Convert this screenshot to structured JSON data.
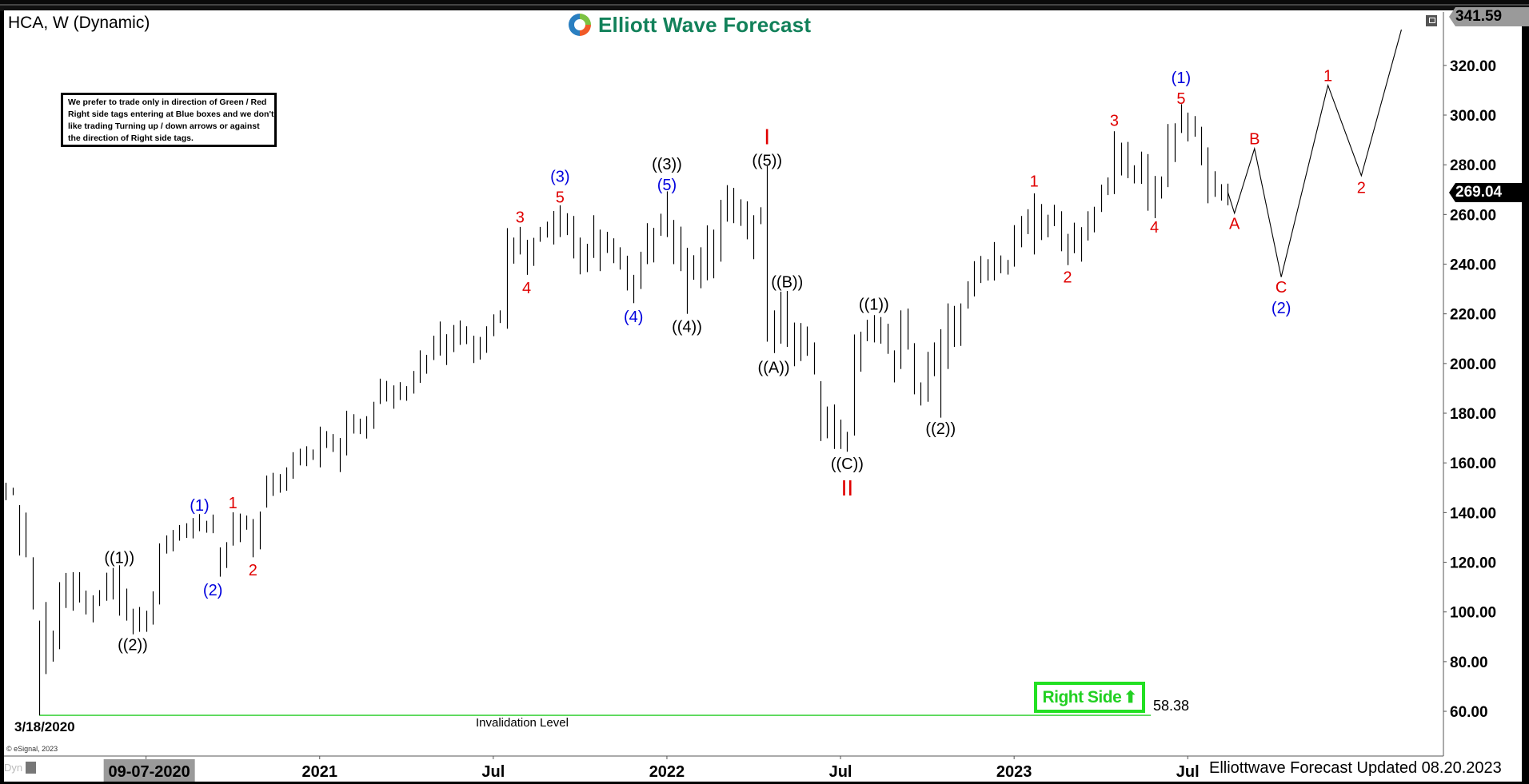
{
  "header": {
    "title": "HCA, W (Dynamic)",
    "logo_text": "Elliott Wave Forecast",
    "logo_icon": "circular-arrows-logo",
    "restore_icon": "window-restore-icon"
  },
  "disclaimer": {
    "lines": [
      "We prefer to trade only in direction of Green / Red",
      "Right side tags entering at Blue boxes and we don't",
      "like trading Turning up / down arrows or against",
      "the direction of Right side tags."
    ]
  },
  "price_tags": {
    "high": "341.59",
    "last": "269.04"
  },
  "low_date_label": "3/18/2020",
  "invalidation": {
    "level": 58.38,
    "value_text": "58.38",
    "label": "Invalidation Level",
    "start": "2020-03-16",
    "end": "2023-05-22",
    "color": "#22cc22"
  },
  "right_side": {
    "label": "Right Side",
    "arrow": "⬆",
    "arrow_icon": "up-arrow-icon",
    "color": "#22e022"
  },
  "footer": {
    "updated": "Elliottwave Forecast Updated 08.20.2023",
    "copyright": "© eSignal, 2023",
    "dyn": "Dyn",
    "lock_icon": "lock-icon"
  },
  "colors": {
    "bars": "#000000",
    "red_labels": "#e00000",
    "blue_labels": "#0000dd",
    "black_labels": "#000000",
    "logo": "#12815a"
  },
  "chart_data": {
    "type": "bar",
    "style": "weekly high-low bars",
    "symbol": "HCA",
    "ylim": [
      42,
      341.5
    ],
    "y_ticks": [
      "60.00",
      "80.00",
      "100.00",
      "120.00",
      "140.00",
      "160.00",
      "180.00",
      "200.00",
      "220.00",
      "240.00",
      "260.00",
      "280.00",
      "300.00",
      "320.00"
    ],
    "x_ticks": [
      {
        "date": "2020-07-06",
        "label": "09-07-2020",
        "highlight": true
      },
      {
        "date": "2021-01-04",
        "label": "2021"
      },
      {
        "date": "2021-07-05",
        "label": "Jul"
      },
      {
        "date": "2022-01-03",
        "label": "2022"
      },
      {
        "date": "2022-07-04",
        "label": "Jul"
      },
      {
        "date": "2023-01-02",
        "label": "2023"
      },
      {
        "date": "2023-07-03",
        "label": "Jul"
      }
    ],
    "bars_columns": [
      "week",
      "high",
      "low"
    ],
    "bars": [
      [
        "2020-02-10",
        152,
        145
      ],
      [
        "2020-02-17",
        150,
        147
      ],
      [
        "2020-02-24",
        143,
        122.7
      ],
      [
        "2020-03-02",
        140,
        122
      ],
      [
        "2020-03-09",
        122,
        101
      ],
      [
        "2020-03-16",
        96.5,
        58.4
      ],
      [
        "2020-03-23",
        104,
        75
      ],
      [
        "2020-03-30",
        92.5,
        80
      ],
      [
        "2020-04-06",
        112,
        85
      ],
      [
        "2020-04-13",
        115.7,
        101.6
      ],
      [
        "2020-04-20",
        116,
        100.5
      ],
      [
        "2020-04-27",
        116,
        103.8
      ],
      [
        "2020-05-04",
        108.6,
        99
      ],
      [
        "2020-05-11",
        106.7,
        95.8
      ],
      [
        "2020-05-18",
        108.8,
        102.4
      ],
      [
        "2020-05-25",
        115.8,
        104.5
      ],
      [
        "2020-06-01",
        117.7,
        105
      ],
      [
        "2020-06-08",
        118.8,
        98.5
      ],
      [
        "2020-06-15",
        109.4,
        96.5
      ],
      [
        "2020-06-22",
        101.3,
        91
      ],
      [
        "2020-06-29",
        102,
        92
      ],
      [
        "2020-07-06",
        100.5,
        92
      ],
      [
        "2020-07-13",
        108.3,
        94.9
      ],
      [
        "2020-07-20",
        127.6,
        103
      ],
      [
        "2020-07-27",
        130.8,
        123.5
      ],
      [
        "2020-08-03",
        133,
        124.4
      ],
      [
        "2020-08-10",
        135,
        128.7
      ],
      [
        "2020-08-17",
        135.7,
        129.8
      ],
      [
        "2020-08-24",
        137.8,
        129.6
      ],
      [
        "2020-08-31",
        139.4,
        132.5
      ],
      [
        "2020-09-07",
        136.7,
        131.9
      ],
      [
        "2020-09-14",
        139.2,
        131.7
      ],
      [
        "2020-09-21",
        126,
        114.2
      ],
      [
        "2020-09-28",
        128.1,
        117.7
      ],
      [
        "2020-10-05",
        140.1,
        126.7
      ],
      [
        "2020-10-12",
        139.6,
        128.1
      ],
      [
        "2020-10-19",
        138.8,
        133.1
      ],
      [
        "2020-10-26",
        137.4,
        122
      ],
      [
        "2020-11-02",
        140.4,
        125.2
      ],
      [
        "2020-11-09",
        154.9,
        142
      ],
      [
        "2020-11-16",
        156,
        146.7
      ],
      [
        "2020-11-23",
        155.5,
        148
      ],
      [
        "2020-11-30",
        158.2,
        148.8
      ],
      [
        "2020-12-07",
        164.3,
        153.6
      ],
      [
        "2020-12-14",
        165.7,
        159
      ],
      [
        "2020-12-21",
        166.7,
        158.7
      ],
      [
        "2020-12-28",
        165.4,
        161.2
      ],
      [
        "2021-01-04",
        174.6,
        158.2
      ],
      [
        "2021-01-11",
        172.8,
        166
      ],
      [
        "2021-01-18",
        171.6,
        164.4
      ],
      [
        "2021-01-25",
        170,
        156.3
      ],
      [
        "2021-02-01",
        181,
        163
      ],
      [
        "2021-02-08",
        179.6,
        171.8
      ],
      [
        "2021-02-15",
        177.8,
        171.6
      ],
      [
        "2021-02-22",
        178.8,
        169.8
      ],
      [
        "2021-03-01",
        184.6,
        173.7
      ],
      [
        "2021-03-08",
        193.9,
        183.7
      ],
      [
        "2021-03-15",
        193,
        184.7
      ],
      [
        "2021-03-22",
        191.2,
        181.8
      ],
      [
        "2021-03-29",
        192.5,
        185.3
      ],
      [
        "2021-04-05",
        190.9,
        185
      ],
      [
        "2021-04-12",
        197,
        187.9
      ],
      [
        "2021-04-19",
        205.3,
        192.2
      ],
      [
        "2021-04-26",
        203.5,
        195.9
      ],
      [
        "2021-05-03",
        211.2,
        201.4
      ],
      [
        "2021-05-10",
        216.9,
        203.2
      ],
      [
        "2021-05-17",
        211.8,
        199.4
      ],
      [
        "2021-05-24",
        215.5,
        204.6
      ],
      [
        "2021-05-31",
        217.3,
        207.5
      ],
      [
        "2021-06-07",
        215,
        207.8
      ],
      [
        "2021-06-14",
        211.2,
        200.2
      ],
      [
        "2021-06-21",
        210.7,
        201.6
      ],
      [
        "2021-06-28",
        215,
        204.3
      ],
      [
        "2021-07-05",
        219.8,
        211
      ],
      [
        "2021-07-12",
        221.4,
        216.3
      ],
      [
        "2021-07-19",
        254.5,
        214
      ],
      [
        "2021-07-26",
        250.7,
        240.2
      ],
      [
        "2021-08-02",
        255,
        243.9
      ],
      [
        "2021-08-09",
        249.8,
        235.7
      ],
      [
        "2021-08-16",
        250.6,
        239.3
      ],
      [
        "2021-08-23",
        255,
        249
      ],
      [
        "2021-08-30",
        257.1,
        250.7
      ],
      [
        "2021-09-06",
        261.4,
        247.9
      ],
      [
        "2021-09-13",
        263.7,
        250.9
      ],
      [
        "2021-09-20",
        260.5,
        251.7
      ],
      [
        "2021-09-27",
        259.4,
        242.3
      ],
      [
        "2021-10-04",
        250.7,
        235.9
      ],
      [
        "2021-10-11",
        248.2,
        236.8
      ],
      [
        "2021-10-18",
        259.7,
        242.5
      ],
      [
        "2021-10-25",
        253.9,
        237.2
      ],
      [
        "2021-11-01",
        253,
        244.5
      ],
      [
        "2021-11-08",
        250.4,
        240.4
      ],
      [
        "2021-11-15",
        246.8,
        237.8
      ],
      [
        "2021-11-22",
        243.4,
        229.4
      ],
      [
        "2021-11-29",
        235.7,
        224.3
      ],
      [
        "2021-12-06",
        245,
        230
      ],
      [
        "2021-12-13",
        256.5,
        240
      ],
      [
        "2021-12-20",
        254.6,
        240.7
      ],
      [
        "2021-12-27",
        260.3,
        251.4
      ],
      [
        "2022-01-03",
        269.3,
        250.9
      ],
      [
        "2022-01-10",
        257.8,
        240
      ],
      [
        "2022-01-17",
        255.1,
        237.2
      ],
      [
        "2022-01-24",
        246.6,
        220
      ],
      [
        "2022-01-31",
        243.6,
        233.7
      ],
      [
        "2022-02-07",
        246.8,
        230.3
      ],
      [
        "2022-02-14",
        255.6,
        233.5
      ],
      [
        "2022-02-21",
        253.9,
        234.3
      ],
      [
        "2022-02-28",
        265.9,
        241
      ],
      [
        "2022-03-07",
        271.8,
        257.1
      ],
      [
        "2022-03-14",
        270.7,
        256.5
      ],
      [
        "2022-03-21",
        266.1,
        255.4
      ],
      [
        "2022-03-28",
        265.3,
        250
      ],
      [
        "2022-04-04",
        259.7,
        242
      ],
      [
        "2022-04-11",
        262.9,
        256.1
      ],
      [
        "2022-04-18",
        279.5,
        208.8
      ],
      [
        "2022-04-25",
        221.4,
        204.2
      ],
      [
        "2022-05-02",
        228.9,
        208
      ],
      [
        "2022-05-09",
        229.2,
        206.7
      ],
      [
        "2022-05-16",
        216.5,
        198.9
      ],
      [
        "2022-05-23",
        216.3,
        201
      ],
      [
        "2022-05-30",
        214.9,
        203.1
      ],
      [
        "2022-06-06",
        208.5,
        195.6
      ],
      [
        "2022-06-13",
        192.9,
        168.8
      ],
      [
        "2022-06-20",
        182.7,
        169.9
      ],
      [
        "2022-06-27",
        183.5,
        165.6
      ],
      [
        "2022-07-04",
        177.4,
        165.6
      ],
      [
        "2022-07-11",
        172.5,
        164.5
      ],
      [
        "2022-07-18",
        211.7,
        171
      ],
      [
        "2022-07-25",
        212.8,
        196.7
      ],
      [
        "2022-08-01",
        217.6,
        209
      ],
      [
        "2022-08-08",
        219.5,
        208.5
      ],
      [
        "2022-08-15",
        218.7,
        208
      ],
      [
        "2022-08-22",
        216,
        203.9
      ],
      [
        "2022-08-29",
        205.3,
        192.4
      ],
      [
        "2022-09-05",
        221.4,
        197.8
      ],
      [
        "2022-09-12",
        222.1,
        205.6
      ],
      [
        "2022-09-19",
        208.2,
        187.6
      ],
      [
        "2022-09-26",
        192.4,
        183.1
      ],
      [
        "2022-10-03",
        204.7,
        184.6
      ],
      [
        "2022-10-10",
        208.5,
        194.9
      ],
      [
        "2022-10-17",
        213.8,
        178.2
      ],
      [
        "2022-10-24",
        224.2,
        197.8
      ],
      [
        "2022-10-31",
        223.2,
        206.7
      ],
      [
        "2022-11-07",
        224.2,
        207.1
      ],
      [
        "2022-11-14",
        233.1,
        222.1
      ],
      [
        "2022-11-21",
        241.2,
        227
      ],
      [
        "2022-11-28",
        243.3,
        232.4
      ],
      [
        "2022-12-05",
        242,
        233.4
      ],
      [
        "2022-12-12",
        248.9,
        233.4
      ],
      [
        "2022-12-19",
        243.5,
        236.3
      ],
      [
        "2022-12-26",
        241.7,
        235.8
      ],
      [
        "2023-01-02",
        255.7,
        239
      ],
      [
        "2023-01-09",
        259.4,
        246.8
      ],
      [
        "2023-01-16",
        262.1,
        252.1
      ],
      [
        "2023-01-23",
        268.5,
        243.9
      ],
      [
        "2023-01-30",
        264.2,
        249.7
      ],
      [
        "2023-02-06",
        259.9,
        250.8
      ],
      [
        "2023-02-13",
        263.9,
        255.3
      ],
      [
        "2023-02-20",
        261.3,
        245.2
      ],
      [
        "2023-02-27",
        252.2,
        239.6
      ],
      [
        "2023-03-06",
        256.7,
        244.4
      ],
      [
        "2023-03-13",
        254.9,
        241
      ],
      [
        "2023-03-20",
        261.3,
        249.5
      ],
      [
        "2023-03-27",
        263.1,
        252.8
      ],
      [
        "2023-04-03",
        272,
        261
      ],
      [
        "2023-04-10",
        274.9,
        267.8
      ],
      [
        "2023-04-17",
        293.5,
        268.2
      ],
      [
        "2023-04-24",
        288.9,
        275.7
      ],
      [
        "2023-05-01",
        289.2,
        274.6
      ],
      [
        "2023-05-08",
        279.8,
        272.5
      ],
      [
        "2023-05-15",
        285.3,
        272.3
      ],
      [
        "2023-05-22",
        284.3,
        261.5
      ],
      [
        "2023-05-29",
        275.5,
        258.5
      ],
      [
        "2023-06-05",
        275.3,
        266.4
      ],
      [
        "2023-06-12",
        296.4,
        271
      ],
      [
        "2023-06-19",
        296.7,
        281.1
      ],
      [
        "2023-06-26",
        304.4,
        292.8
      ],
      [
        "2023-07-03",
        301,
        289.4
      ],
      [
        "2023-07-10",
        299.6,
        291.3
      ],
      [
        "2023-07-17",
        295.3,
        279.8
      ],
      [
        "2023-07-24",
        287,
        264.5
      ],
      [
        "2023-07-31",
        277.4,
        267.1
      ],
      [
        "2023-08-07",
        272.2,
        265.6
      ],
      [
        "2023-08-14",
        272.4,
        263.7
      ]
    ],
    "last_price": 269.04,
    "high_marker": 341.59,
    "projection_path": [
      [
        "2023-08-14",
        269.04
      ],
      [
        "2023-08-21",
        260.5
      ],
      [
        "2023-09-11",
        286.5
      ],
      [
        "2023-10-09",
        234.8
      ],
      [
        "2023-11-27",
        312
      ],
      [
        "2024-01-01",
        275.6
      ],
      [
        "2024-02-12",
        334.4
      ]
    ],
    "wave_labels": [
      {
        "text": "((1))",
        "date": "2020-06-08",
        "price": 122,
        "color": "black"
      },
      {
        "text": "((2))",
        "date": "2020-06-22",
        "price": 87,
        "color": "black"
      },
      {
        "text": "(1)",
        "date": "2020-08-31",
        "price": 143,
        "color": "blue"
      },
      {
        "text": "(2)",
        "date": "2020-09-14",
        "price": 109,
        "color": "blue"
      },
      {
        "text": "1",
        "date": "2020-10-05",
        "price": 144,
        "color": "red"
      },
      {
        "text": "2",
        "date": "2020-10-26",
        "price": 117,
        "color": "red"
      },
      {
        "text": "3",
        "date": "2021-08-02",
        "price": 259,
        "color": "red"
      },
      {
        "text": "4",
        "date": "2021-08-09",
        "price": 230.5,
        "color": "red"
      },
      {
        "text": "(3)",
        "date": "2021-09-13",
        "price": 274.5,
        "color": "blue"
      },
      {
        "text": "5",
        "date": "2021-09-13",
        "price": 268,
        "color": "red"
      },
      {
        "text": "(4)",
        "date": "2021-11-29",
        "price": 219,
        "color": "blue"
      },
      {
        "text": "((3))",
        "date": "2022-01-03",
        "price": 279.5,
        "color": "black"
      },
      {
        "text": "(5)",
        "date": "2022-01-03",
        "price": 273,
        "color": "blue"
      },
      {
        "text": "((4))",
        "date": "2022-01-24",
        "price": 215,
        "color": "black"
      },
      {
        "text": "I",
        "date": "2022-04-18",
        "price": 290.5,
        "color": "red",
        "roman": true
      },
      {
        "text": "((5))",
        "date": "2022-04-18",
        "price": 283,
        "color": "black"
      },
      {
        "text": "((A))",
        "date": "2022-04-25",
        "price": 198.5,
        "color": "black"
      },
      {
        "text": "((B))",
        "date": "2022-05-09",
        "price": 233,
        "color": "black"
      },
      {
        "text": "((C))",
        "date": "2022-07-11",
        "price": 159,
        "color": "black"
      },
      {
        "text": "II",
        "date": "2022-07-11",
        "price": 151,
        "color": "red",
        "roman": true
      },
      {
        "text": "((1))",
        "date": "2022-08-08",
        "price": 224,
        "color": "black"
      },
      {
        "text": "((2))",
        "date": "2022-10-17",
        "price": 174,
        "color": "black"
      },
      {
        "text": "1",
        "date": "2023-01-23",
        "price": 273.5,
        "color": "red"
      },
      {
        "text": "2",
        "date": "2023-02-27",
        "price": 235,
        "color": "red"
      },
      {
        "text": "3",
        "date": "2023-04-17",
        "price": 298,
        "color": "red"
      },
      {
        "text": "4",
        "date": "2023-05-29",
        "price": 255,
        "color": "red"
      },
      {
        "text": "(1)",
        "date": "2023-06-26",
        "price": 314.5,
        "color": "blue"
      },
      {
        "text": "5",
        "date": "2023-06-26",
        "price": 307.5,
        "color": "red"
      },
      {
        "text": "A",
        "date": "2023-08-21",
        "price": 256.5,
        "color": "red"
      },
      {
        "text": "B",
        "date": "2023-09-11",
        "price": 290.5,
        "color": "red"
      },
      {
        "text": "C",
        "date": "2023-10-09",
        "price": 230,
        "color": "red"
      },
      {
        "text": "(2)",
        "date": "2023-10-09",
        "price": 223.5,
        "color": "blue"
      },
      {
        "text": "1",
        "date": "2023-11-27",
        "price": 316,
        "color": "red"
      },
      {
        "text": "2",
        "date": "2024-01-01",
        "price": 271,
        "color": "red"
      }
    ]
  }
}
